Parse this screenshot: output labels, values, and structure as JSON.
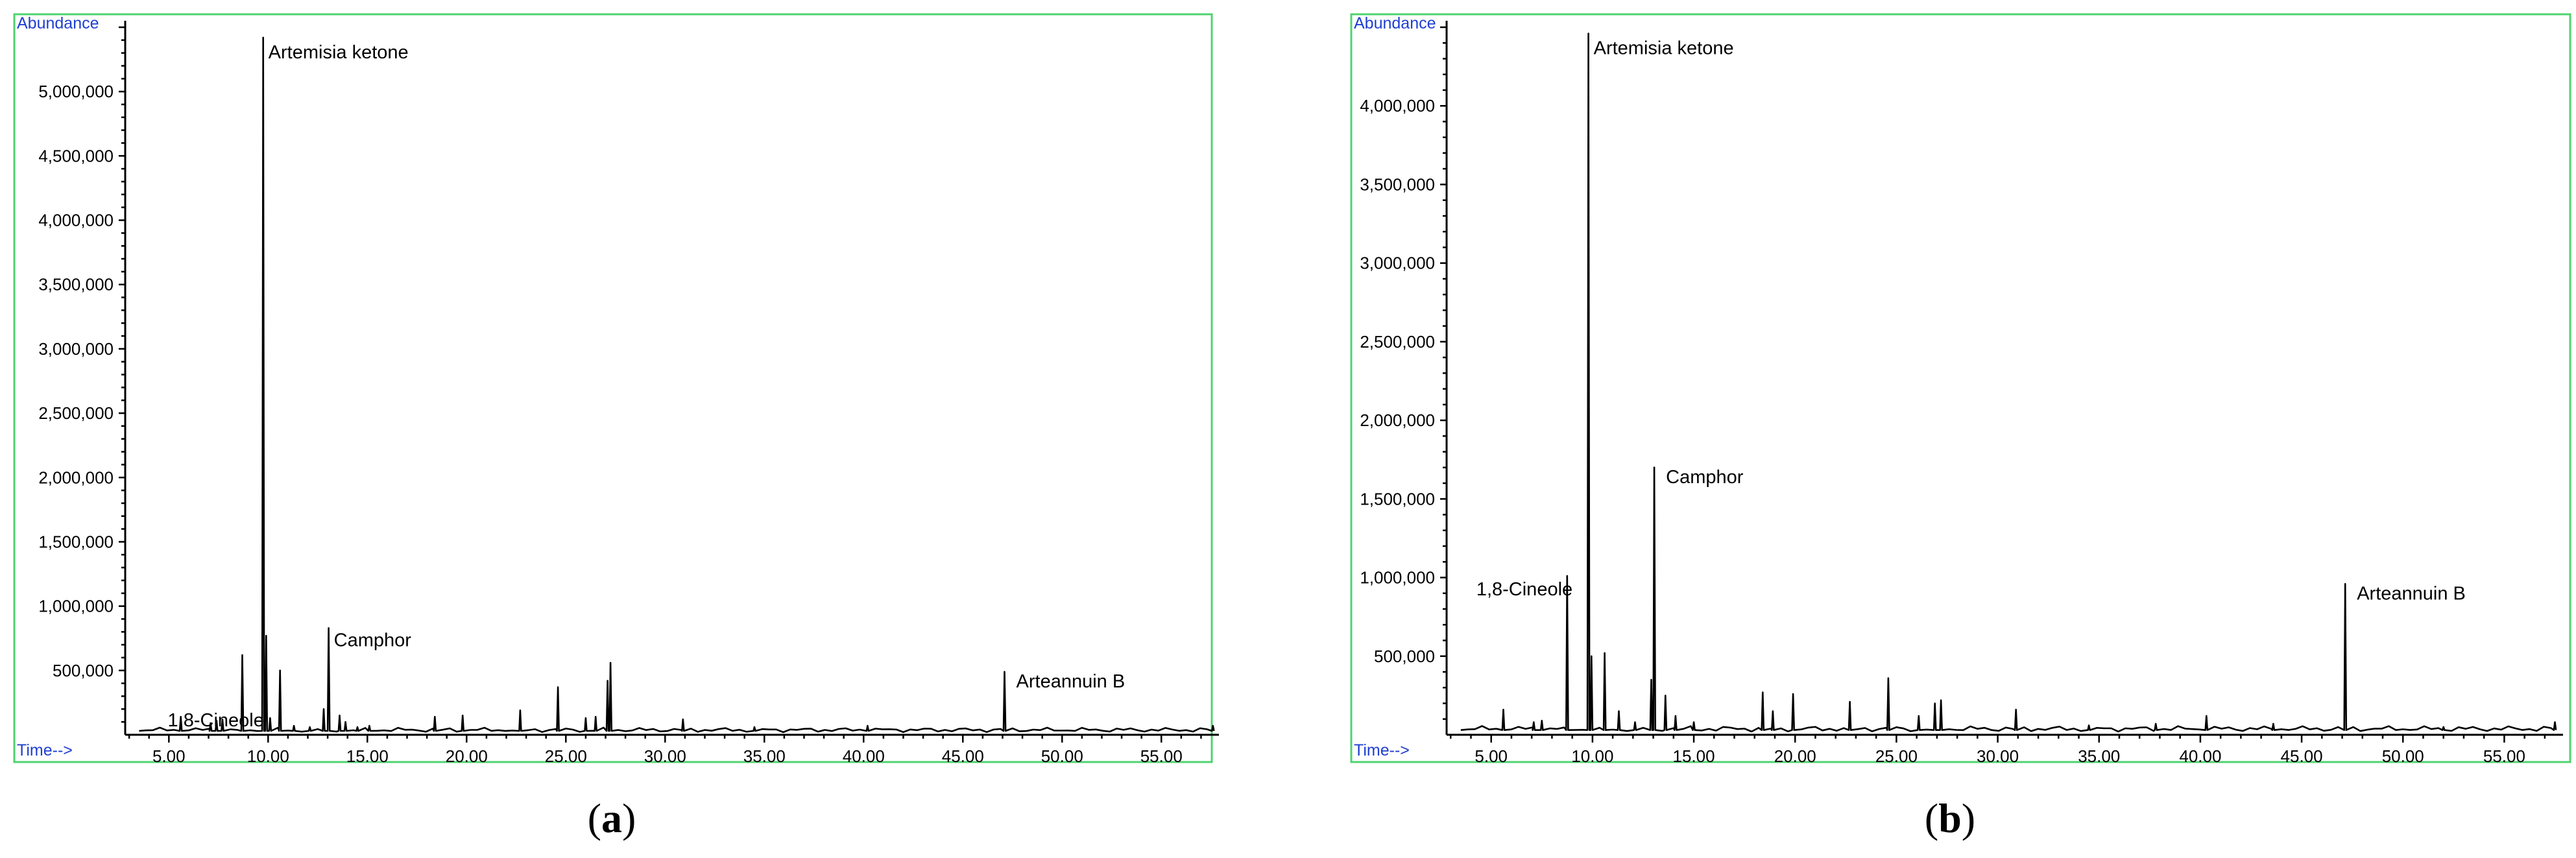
{
  "chart_data": [
    {
      "type": "line",
      "panel_label": "a",
      "xlabel": "Time-->",
      "ylabel": "Abundance",
      "xlim": [
        2.8,
        57.9
      ],
      "ylim": [
        0,
        5500000
      ],
      "x_ticks": [
        "5.00",
        "10.00",
        "15.00",
        "20.00",
        "25.00",
        "30.00",
        "35.00",
        "40.00",
        "45.00",
        "50.00",
        "55.00"
      ],
      "x_tick_values": [
        5,
        10,
        15,
        20,
        25,
        30,
        35,
        40,
        45,
        50,
        55
      ],
      "y_ticks": [
        "500000",
        "1000000",
        "1500000",
        "2000000",
        "2500000",
        "3000000",
        "3500000",
        "4000000",
        "4500000",
        "5000000"
      ],
      "y_tick_values": [
        500000,
        1000000,
        1500000,
        2000000,
        2500000,
        3000000,
        3500000,
        4000000,
        4500000,
        5000000
      ],
      "baseline": 30000,
      "series": [
        {
          "peaks": [
            [
              5.6,
              140000
            ],
            [
              7.1,
              90000
            ],
            [
              7.4,
              110000
            ],
            [
              7.7,
              120000
            ],
            [
              8.7,
              620000
            ],
            [
              9.75,
              5420000
            ],
            [
              9.9,
              770000
            ],
            [
              10.1,
              130000
            ],
            [
              10.6,
              500000
            ],
            [
              11.3,
              70000
            ],
            [
              12.1,
              60000
            ],
            [
              12.8,
              200000
            ],
            [
              13.05,
              830000
            ],
            [
              13.6,
              150000
            ],
            [
              13.9,
              100000
            ],
            [
              14.5,
              60000
            ],
            [
              15.1,
              70000
            ],
            [
              18.4,
              140000
            ],
            [
              19.8,
              150000
            ],
            [
              22.7,
              190000
            ],
            [
              24.6,
              370000
            ],
            [
              26.0,
              130000
            ],
            [
              26.5,
              140000
            ],
            [
              27.1,
              420000
            ],
            [
              27.25,
              560000
            ],
            [
              30.9,
              120000
            ],
            [
              34.5,
              60000
            ],
            [
              40.2,
              70000
            ],
            [
              47.1,
              490000
            ],
            [
              57.6,
              70000
            ]
          ]
        }
      ],
      "annotations": [
        {
          "text": "Artemisia ketone",
          "x": 9.75,
          "y": 5420000
        },
        {
          "text": "1,8-Cineole",
          "x": 8.7,
          "y": 620000
        },
        {
          "text": "Camphor",
          "x": 13.05,
          "y": 830000
        },
        {
          "text": "Arteannuin B",
          "x": 47.1,
          "y": 490000
        }
      ]
    },
    {
      "type": "line",
      "panel_label": "b",
      "xlabel": "Time-->",
      "ylabel": "Abundance",
      "xlim": [
        2.8,
        57.9
      ],
      "ylim": [
        0,
        4500000
      ],
      "x_ticks": [
        "5.00",
        "10.00",
        "15.00",
        "20.00",
        "25.00",
        "30.00",
        "35.00",
        "40.00",
        "45.00",
        "50.00",
        "55.00"
      ],
      "x_tick_values": [
        5,
        10,
        15,
        20,
        25,
        30,
        35,
        40,
        45,
        50,
        55
      ],
      "y_ticks": [
        "500000",
        "1000000",
        "1500000",
        "2000000",
        "2500000",
        "3000000",
        "3500000",
        "4000000"
      ],
      "y_tick_values": [
        500000,
        1000000,
        1500000,
        2000000,
        2500000,
        3000000,
        3500000,
        4000000
      ],
      "baseline": 30000,
      "series": [
        {
          "peaks": [
            [
              5.6,
              160000
            ],
            [
              7.1,
              80000
            ],
            [
              7.5,
              90000
            ],
            [
              8.75,
              1010000
            ],
            [
              9.8,
              4460000
            ],
            [
              9.95,
              500000
            ],
            [
              10.6,
              520000
            ],
            [
              11.3,
              150000
            ],
            [
              12.1,
              80000
            ],
            [
              12.9,
              350000
            ],
            [
              13.05,
              1700000
            ],
            [
              13.6,
              250000
            ],
            [
              14.1,
              120000
            ],
            [
              15.0,
              80000
            ],
            [
              18.4,
              270000
            ],
            [
              18.9,
              150000
            ],
            [
              19.9,
              260000
            ],
            [
              22.7,
              210000
            ],
            [
              24.6,
              360000
            ],
            [
              26.1,
              120000
            ],
            [
              26.9,
              200000
            ],
            [
              27.2,
              220000
            ],
            [
              30.9,
              160000
            ],
            [
              34.5,
              60000
            ],
            [
              37.8,
              70000
            ],
            [
              40.3,
              120000
            ],
            [
              43.6,
              70000
            ],
            [
              47.15,
              960000
            ],
            [
              52.0,
              50000
            ],
            [
              57.5,
              80000
            ]
          ]
        }
      ],
      "annotations": [
        {
          "text": "Artemisia ketone",
          "x": 9.8,
          "y": 4460000
        },
        {
          "text": "1,8-Cineole",
          "x": 8.75,
          "y": 1010000
        },
        {
          "text": "Camphor",
          "x": 13.05,
          "y": 1700000
        },
        {
          "text": "Arteannuin B",
          "x": 47.15,
          "y": 960000
        }
      ]
    }
  ],
  "display": {
    "frame_color": "#4fd36f",
    "axis_title_color": "#1f3fd2",
    "trace_color": "#000000"
  }
}
